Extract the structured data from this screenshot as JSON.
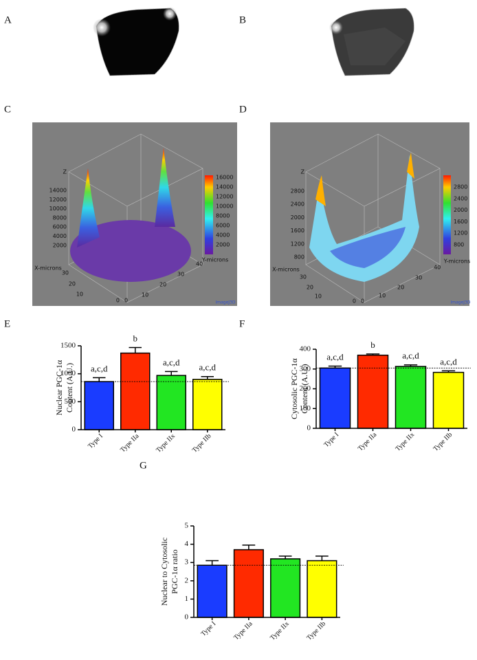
{
  "panel_labels": [
    "A",
    "B",
    "C",
    "D",
    "E",
    "F",
    "G"
  ],
  "surface_plots": [
    {
      "z_axis": "Z",
      "x_axis": "X-microns",
      "y_axis": "Y-microns",
      "z_ticks": [
        14000,
        12000,
        10000,
        8000,
        6000,
        4000,
        2000
      ],
      "colorbar_ticks": [
        16000,
        14000,
        12000,
        10000,
        8000,
        6000,
        4000,
        2000
      ],
      "x_ticks": [
        30,
        20,
        10,
        0
      ],
      "y_ticks": [
        0,
        10,
        20,
        30,
        40
      ],
      "credit": "ImageJ3D"
    },
    {
      "z_axis": "Z",
      "x_axis": "X-microns",
      "y_axis": "Y-microns",
      "z_ticks": [
        2800,
        2400,
        2000,
        1600,
        1200,
        800
      ],
      "colorbar_ticks": [
        2800,
        2400,
        2000,
        1600,
        1200,
        800
      ],
      "x_ticks": [
        30,
        20,
        10,
        0
      ],
      "y_ticks": [
        0,
        10,
        20,
        30,
        40
      ],
      "credit": "ImageJ3D"
    }
  ],
  "chart_data": [
    {
      "type": "bar",
      "ylabel": [
        "Nuclear PGC-1α",
        "Content   (A.U.)"
      ],
      "categories": [
        "Type I",
        "Type IIa",
        "Type IIx",
        "Type IIb"
      ],
      "values": [
        860,
        1370,
        970,
        900
      ],
      "errors": [
        70,
        100,
        70,
        50
      ],
      "colors": [
        "#1a3cff",
        "#ff2a00",
        "#22e622",
        "#ffff00"
      ],
      "annotations": [
        "a,c,d",
        "b",
        "a,c,d",
        "a,c,d"
      ],
      "ylim": [
        0,
        1500
      ],
      "yticks": [
        0,
        500,
        1000,
        1500
      ]
    },
    {
      "type": "bar",
      "ylabel": [
        "Cytosolic PGC-1α",
        "Content   (A.U.)"
      ],
      "categories": [
        "Type I",
        "Type IIa",
        "Type IIx",
        "Type IIb"
      ],
      "values": [
        305,
        370,
        313,
        283
      ],
      "errors": [
        10,
        6,
        8,
        8
      ],
      "colors": [
        "#1a3cff",
        "#ff2a00",
        "#22e622",
        "#ffff00"
      ],
      "annotations": [
        "a,c,d",
        "b",
        "a,c,d",
        "a,c,d"
      ],
      "ylim": [
        0,
        400
      ],
      "yticks": [
        0,
        100,
        200,
        300,
        400
      ]
    },
    {
      "type": "bar",
      "ylabel": [
        "Nuclear to Cytosolic",
        "PGC-1α ratio"
      ],
      "categories": [
        "Type I",
        "Type IIa",
        "Type IIx",
        "Type IIb"
      ],
      "values": [
        2.85,
        3.7,
        3.2,
        3.1
      ],
      "errors": [
        0.25,
        0.25,
        0.15,
        0.25
      ],
      "colors": [
        "#1a3cff",
        "#ff2a00",
        "#22e622",
        "#ffff00"
      ],
      "ylim": [
        0,
        5
      ],
      "yticks": [
        0,
        1,
        2,
        3,
        4,
        5
      ]
    }
  ]
}
